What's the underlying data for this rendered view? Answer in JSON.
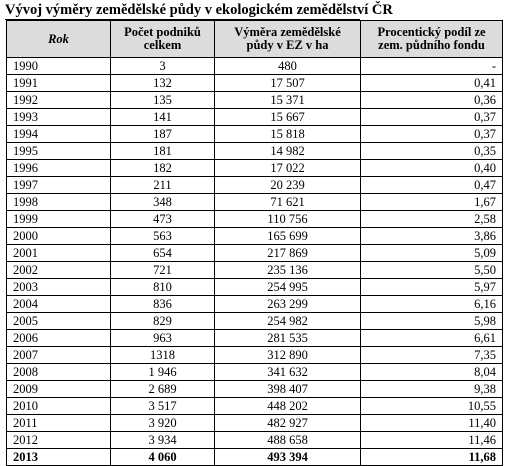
{
  "title": "Vývoj výměry zemědělské půdy v ekologickém zemědělství ČR",
  "headers": {
    "rok": "Rok",
    "podniku": "Počet podniků celkem",
    "vymera": "Výměra zemědělské půdy v EZ v ha",
    "podil": "Procentický podíl ze zem. půdního fondu"
  },
  "rows": [
    {
      "rok": "1990",
      "podniku": "3",
      "vymera": "480",
      "podil": "-"
    },
    {
      "rok": "1991",
      "podniku": "132",
      "vymera": "17 507",
      "podil": "0,41"
    },
    {
      "rok": "1992",
      "podniku": "135",
      "vymera": "15 371",
      "podil": "0,36"
    },
    {
      "rok": "1993",
      "podniku": "141",
      "vymera": "15 667",
      "podil": "0,37"
    },
    {
      "rok": "1994",
      "podniku": "187",
      "vymera": "15 818",
      "podil": "0,37"
    },
    {
      "rok": "1995",
      "podniku": "181",
      "vymera": "14 982",
      "podil": "0,35"
    },
    {
      "rok": "1996",
      "podniku": "182",
      "vymera": "17 022",
      "podil": "0,40"
    },
    {
      "rok": "1997",
      "podniku": "211",
      "vymera": "20 239",
      "podil": "0,47"
    },
    {
      "rok": "1998",
      "podniku": "348",
      "vymera": "71 621",
      "podil": "1,67"
    },
    {
      "rok": "1999",
      "podniku": "473",
      "vymera": "110 756",
      "podil": "2,58"
    },
    {
      "rok": "2000",
      "podniku": "563",
      "vymera": "165 699",
      "podil": "3,86"
    },
    {
      "rok": "2001",
      "podniku": "654",
      "vymera": "217 869",
      "podil": "5,09"
    },
    {
      "rok": "2002",
      "podniku": "721",
      "vymera": "235 136",
      "podil": "5,50"
    },
    {
      "rok": "2003",
      "podniku": "810",
      "vymera": "254 995",
      "podil": "5,97"
    },
    {
      "rok": "2004",
      "podniku": "836",
      "vymera": "263 299",
      "podil": "6,16"
    },
    {
      "rok": "2005",
      "podniku": "829",
      "vymera": "254 982",
      "podil": "5,98"
    },
    {
      "rok": "2006",
      "podniku": "963",
      "vymera": "281 535",
      "podil": "6,61"
    },
    {
      "rok": "2007",
      "podniku": "1318",
      "vymera": "312 890",
      "podil": "7,35"
    },
    {
      "rok": "2008",
      "podniku": "1 946",
      "vymera": "341 632",
      "podil": "8,04"
    },
    {
      "rok": "2009",
      "podniku": "2 689",
      "vymera": "398 407",
      "podil": "9,38"
    },
    {
      "rok": "2010",
      "podniku": "3 517",
      "vymera": "448 202",
      "podil": "10,55"
    },
    {
      "rok": "2011",
      "podniku": "3 920",
      "vymera": "482 927",
      "podil": "11,40"
    },
    {
      "rok": "2012",
      "podniku": "3 934",
      "vymera": "488 658",
      "podil": "11,46"
    },
    {
      "rok": "2013",
      "podniku": "4 060",
      "vymera": "493 394",
      "podil": "11,68"
    }
  ]
}
